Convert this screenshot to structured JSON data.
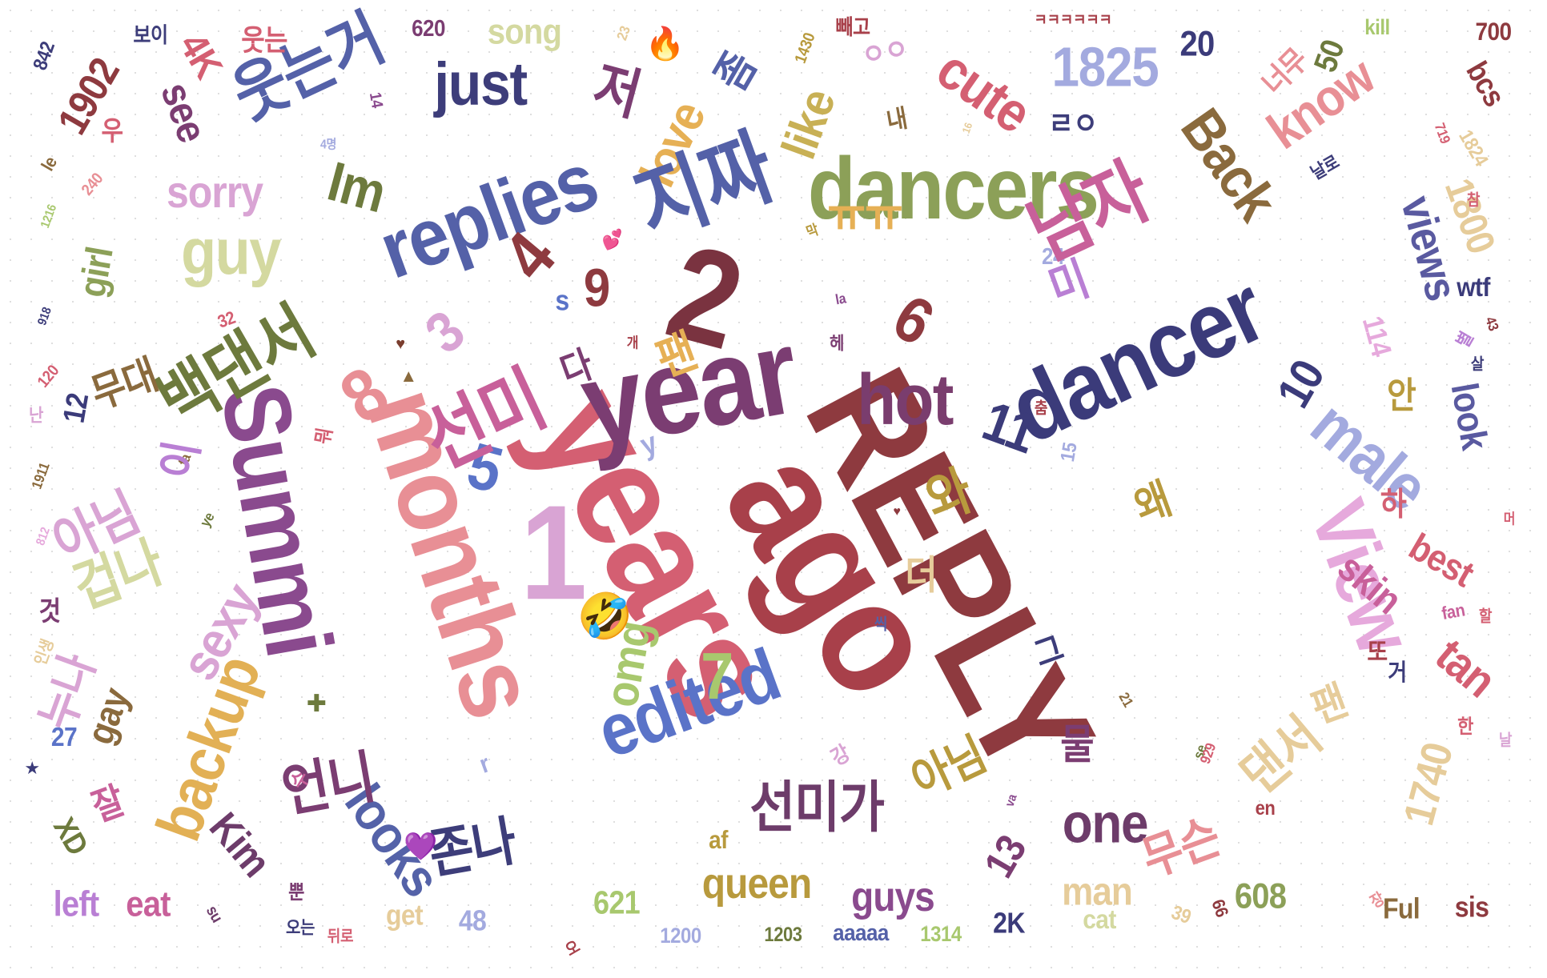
{
  "words": [
    {
      "text": "REPLY",
      "color": "#8e3a3f"
    },
    {
      "text": "ago",
      "color": "#a8404a"
    },
    {
      "text": "years",
      "color": "#d45f72"
    },
    {
      "text": "months",
      "color": "#e88f95"
    },
    {
      "text": "Summi",
      "color": "#8a4a8e"
    },
    {
      "text": "year",
      "color": "#7b3d72"
    },
    {
      "text": "2",
      "color": "#7a3340"
    },
    {
      "text": "1",
      "color": "#d9a4d4"
    },
    {
      "text": "dancer",
      "color": "#3b3b7a"
    },
    {
      "text": "dancers",
      "color": "#8ca058"
    },
    {
      "text": "replies",
      "color": "#5461a8"
    },
    {
      "text": "edited",
      "color": "#5a73c8"
    },
    {
      "text": "View",
      "color": "#e6a9dc"
    },
    {
      "text": "male",
      "color": "#a3aadf"
    },
    {
      "text": "backup",
      "color": "#e2b055"
    },
    {
      "text": "looks",
      "color": "#5462a8"
    },
    {
      "text": "hot",
      "color": "#7a3d6e"
    },
    {
      "text": "one",
      "color": "#6d3c6a"
    },
    {
      "text": "queen",
      "color": "#b89a3d"
    },
    {
      "text": "guys",
      "color": "#8a4a8e"
    },
    {
      "text": "just",
      "color": "#3d3d7a"
    },
    {
      "text": "love",
      "color": "#e6b055"
    },
    {
      "text": "like",
      "color": "#c8b055"
    },
    {
      "text": "cute",
      "color": "#d45f72"
    },
    {
      "text": "1825",
      "color": "#a3aadf"
    },
    {
      "text": "Back",
      "color": "#8a6a3d"
    },
    {
      "text": "know",
      "color": "#e88f95"
    },
    {
      "text": "views",
      "color": "#5a5aa0"
    },
    {
      "text": "1800",
      "color": "#e6cc9a"
    },
    {
      "text": "look",
      "color": "#5a5aa0"
    },
    {
      "text": "best",
      "color": "#d45f72"
    },
    {
      "text": "skin",
      "color": "#c8609a"
    },
    {
      "text": "tan",
      "color": "#d45f72"
    },
    {
      "text": "1740",
      "color": "#e6cc9a"
    },
    {
      "text": "sexy",
      "color": "#d9a4d4"
    },
    {
      "text": "guy",
      "color": "#d4d9a0"
    },
    {
      "text": "sorry",
      "color": "#d9a4d4"
    },
    {
      "text": "Im",
      "color": "#6d7a3d"
    },
    {
      "text": "see",
      "color": "#7b3d72"
    },
    {
      "text": "girl",
      "color": "#8ca058"
    },
    {
      "text": "1902",
      "color": "#8e3a3f"
    },
    {
      "text": "4K",
      "color": "#d45f72"
    },
    {
      "text": "gay",
      "color": "#8a6a3d"
    },
    {
      "text": "Kim",
      "color": "#6d3c6a"
    },
    {
      "text": "omg",
      "color": "#a8c86e"
    },
    {
      "text": "man",
      "color": "#e6cc9a"
    },
    {
      "text": "song",
      "color": "#d4d9a0"
    },
    {
      "text": "wtf",
      "color": "#3b3b7a"
    },
    {
      "text": "bcs",
      "color": "#8e3a3f"
    },
    {
      "text": "left",
      "color": "#b97fd4"
    },
    {
      "text": "eat",
      "color": "#c8609a"
    },
    {
      "text": "get",
      "color": "#e6cc9a"
    },
    {
      "text": "af",
      "color": "#b89a3d"
    },
    {
      "text": "cat",
      "color": "#d4d9a0"
    },
    {
      "text": "sis",
      "color": "#8e3a3f"
    },
    {
      "text": "Ful",
      "color": "#8a6a3d"
    },
    {
      "text": "aaaaa",
      "color": "#5461a8"
    },
    {
      "text": "2K",
      "color": "#3b3b7a"
    },
    {
      "text": "XD",
      "color": "#6d7a3d"
    },
    {
      "text": "621",
      "color": "#a8c86e"
    },
    {
      "text": "608",
      "color": "#8ca058"
    },
    {
      "text": "1200",
      "color": "#a3aadf"
    },
    {
      "text": "1203",
      "color": "#6d7a3d"
    },
    {
      "text": "1314",
      "color": "#a8c86e"
    },
    {
      "text": "48",
      "color": "#a3aadf"
    },
    {
      "text": "620",
      "color": "#7b3d72"
    },
    {
      "text": "700",
      "color": "#8e3a3f"
    },
    {
      "text": "842",
      "color": "#3d3d7a"
    },
    {
      "text": "20",
      "color": "#3b3b7a"
    },
    {
      "text": "50",
      "color": "#6d7a3d"
    },
    {
      "text": "13",
      "color": "#7b3d72"
    },
    {
      "text": "12",
      "color": "#3b3b7a"
    },
    {
      "text": "11",
      "color": "#3b3b7a"
    },
    {
      "text": "10",
      "color": "#3b3b7a"
    },
    {
      "text": "9",
      "color": "#8e3a3f"
    },
    {
      "text": "8",
      "color": "#e88f95"
    },
    {
      "text": "7",
      "color": "#a8c86e"
    },
    {
      "text": "6",
      "color": "#8e3a3f"
    },
    {
      "text": "5",
      "color": "#5a73c8"
    },
    {
      "text": "4",
      "color": "#8e3a3f"
    },
    {
      "text": "3",
      "color": "#d9a4d4"
    },
    {
      "text": "27",
      "color": "#5a73c8"
    },
    {
      "text": "24",
      "color": "#a3aadf"
    },
    {
      "text": "39",
      "color": "#e6cc9a"
    },
    {
      "text": "kill",
      "color": "#a8c86e"
    },
    {
      "text": "fan",
      "color": "#c8609a"
    },
    {
      "text": "en",
      "color": "#a8404a"
    },
    {
      "text": "se",
      "color": "#6d7a3d"
    },
    {
      "text": "va",
      "color": "#8a4a8e"
    },
    {
      "text": "la",
      "color": "#8a4a8e"
    },
    {
      "text": "le",
      "color": "#8a6a3d"
    },
    {
      "text": "fa",
      "color": "#8a6a3d"
    },
    {
      "text": "ye",
      "color": "#6d7a3d"
    },
    {
      "text": "s",
      "color": "#5a73c8"
    },
    {
      "text": "y",
      "color": "#a3aadf"
    },
    {
      "text": "r",
      "color": "#a3aadf"
    },
    {
      "text": "su",
      "color": "#6d3c6a"
    },
    {
      "text": "114",
      "color": "#e6a9dc"
    },
    {
      "text": "1824",
      "color": "#e6cc9a"
    },
    {
      "text": "1911",
      "color": "#8a6a3d"
    },
    {
      "text": "1216",
      "color": "#a8c86e"
    },
    {
      "text": "918",
      "color": "#3d3d7a"
    },
    {
      "text": "812",
      "color": "#e6a9dc"
    },
    {
      "text": "929",
      "color": "#d45f72"
    },
    {
      "text": "240",
      "color": "#e88f95"
    },
    {
      "text": "120",
      "color": "#d45f72"
    },
    {
      "text": "32",
      "color": "#d45f72"
    },
    {
      "text": "66",
      "color": "#8e3a3f"
    },
    {
      "text": "719",
      "color": "#d45f72"
    },
    {
      "text": "43",
      "color": "#8e3a3f"
    },
    {
      "text": "14",
      "color": "#8a4a8e"
    },
    {
      "text": "15",
      "color": "#a3aadf"
    },
    {
      "text": "16",
      "color": "#e6cc9a"
    },
    {
      "text": "21",
      "color": "#8a6a3d"
    },
    {
      "text": "23",
      "color": "#e6cc9a"
    },
    {
      "text": "1430",
      "color": "#b89a3d"
    },
    {
      "text": "웃는거",
      "color": "#5461a8"
    },
    {
      "text": "지짜",
      "color": "#5461a8"
    },
    {
      "text": "저",
      "color": "#7b3d72"
    },
    {
      "text": "좀",
      "color": "#5461a8"
    },
    {
      "text": "ㅠㅠ",
      "color": "#e6b055"
    },
    {
      "text": "남자",
      "color": "#c8609a"
    },
    {
      "text": "미",
      "color": "#b97fd4"
    },
    {
      "text": "백댄서",
      "color": "#6d7a3d"
    },
    {
      "text": "무대",
      "color": "#8a6a3d"
    },
    {
      "text": "선미",
      "color": "#c8609a"
    },
    {
      "text": "팬",
      "color": "#e6b055"
    },
    {
      "text": "다",
      "color": "#7b3d72"
    },
    {
      "text": "와",
      "color": "#b89a3d"
    },
    {
      "text": "왜",
      "color": "#b89a3d"
    },
    {
      "text": "아님",
      "color": "#d9a4d4"
    },
    {
      "text": "이",
      "color": "#b97fd4"
    },
    {
      "text": "겁나",
      "color": "#d4d9a0"
    },
    {
      "text": "누나",
      "color": "#d9a4d4"
    },
    {
      "text": "언니",
      "color": "#7b3d72"
    },
    {
      "text": "존나",
      "color": "#3d3d7a"
    },
    {
      "text": "선미가",
      "color": "#6d3c6a"
    },
    {
      "text": "아님",
      "color": "#b89a3d"
    },
    {
      "text": "물",
      "color": "#7b3d72"
    },
    {
      "text": "그",
      "color": "#3d3d7a"
    },
    {
      "text": "무슨",
      "color": "#e88f95"
    },
    {
      "text": "댄서",
      "color": "#e6cc9a"
    },
    {
      "text": "팬",
      "color": "#e6cc9a"
    },
    {
      "text": "더",
      "color": "#e6cc9a"
    },
    {
      "text": "안",
      "color": "#b89a3d"
    },
    {
      "text": "하",
      "color": "#d45f72"
    },
    {
      "text": "또",
      "color": "#a8404a"
    },
    {
      "text": "거",
      "color": "#3d3d7a"
    },
    {
      "text": "잘",
      "color": "#c8609a"
    },
    {
      "text": "것",
      "color": "#7b3d72"
    },
    {
      "text": "난",
      "color": "#d9a4d4"
    },
    {
      "text": "웃는",
      "color": "#d45f72"
    },
    {
      "text": "보이",
      "color": "#3d3d7a"
    },
    {
      "text": "빼고",
      "color": "#a8404a"
    },
    {
      "text": "내",
      "color": "#8a6a3d"
    },
    {
      "text": "ㄹㅇ",
      "color": "#3d3d7a"
    },
    {
      "text": "ㅇㅇ",
      "color": "#d9a4d4"
    },
    {
      "text": "ㅋㅋㅋㅋㅋㅋ",
      "color": "#a8404a"
    },
    {
      "text": "너무",
      "color": "#e88f95"
    },
    {
      "text": "날로",
      "color": "#3d3d7a"
    },
    {
      "text": "참",
      "color": "#d45f72"
    },
    {
      "text": "살",
      "color": "#3d3d7a"
    },
    {
      "text": "별",
      "color": "#b97fd4"
    },
    {
      "text": "머",
      "color": "#d45f72"
    },
    {
      "text": "할",
      "color": "#d45f72"
    },
    {
      "text": "날",
      "color": "#d9a4d4"
    },
    {
      "text": "한",
      "color": "#d45f72"
    },
    {
      "text": "장",
      "color": "#e88f95"
    },
    {
      "text": "오는",
      "color": "#3d3d7a"
    },
    {
      "text": "뒤로",
      "color": "#d45f72"
    },
    {
      "text": "오",
      "color": "#a8404a"
    },
    {
      "text": "뿐",
      "color": "#7b3d72"
    },
    {
      "text": "수",
      "color": "#c8609a"
    },
    {
      "text": "인생",
      "color": "#e6cc9a"
    },
    {
      "text": "강",
      "color": "#d9a4d4"
    },
    {
      "text": "씩",
      "color": "#5461a8"
    },
    {
      "text": "춤",
      "color": "#a8404a"
    },
    {
      "text": "헤",
      "color": "#7b3d72"
    },
    {
      "text": "개",
      "color": "#a8404a"
    },
    {
      "text": "우",
      "color": "#d45f72"
    },
    {
      "text": "막",
      "color": "#b89a3d"
    },
    {
      "text": "뭐",
      "color": "#d45f72"
    },
    {
      "text": "4명",
      "color": "#a3aadf"
    }
  ],
  "emoji": [
    {
      "glyph": "🤣",
      "name": "rofl-emoji"
    },
    {
      "glyph": "💜",
      "name": "purple-heart-emoji"
    },
    {
      "glyph": "🔥",
      "name": "fire-emoji"
    },
    {
      "glyph": "💕",
      "name": "two-hearts-emoji"
    },
    {
      "glyph": "♥",
      "name": "heart-glyph"
    },
    {
      "glyph": "♥",
      "name": "heart-glyph-2"
    },
    {
      "glyph": "★",
      "name": "star-glyph"
    },
    {
      "glyph": "✚",
      "name": "cross-glyph"
    },
    {
      "glyph": "▲",
      "name": "triangle-glyph"
    }
  ]
}
